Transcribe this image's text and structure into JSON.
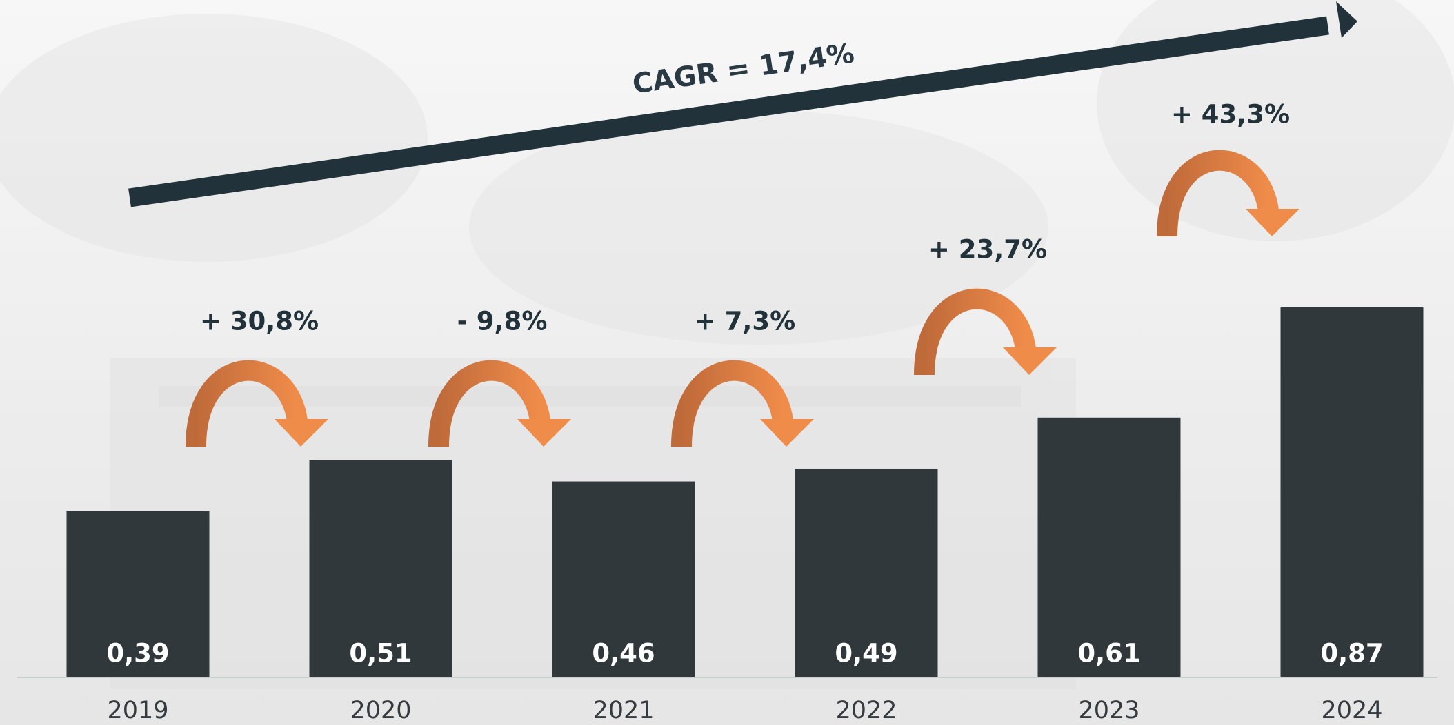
{
  "chart_data": {
    "type": "bar",
    "categories": [
      "2019",
      "2020",
      "2021",
      "2022",
      "2023",
      "2024"
    ],
    "values": [
      0.39,
      0.51,
      0.46,
      0.49,
      0.61,
      0.87
    ],
    "value_labels": [
      "0,39",
      "0,51",
      "0,46",
      "0,49",
      "0,61",
      "0,87"
    ],
    "color": "#30383b",
    "annotations": [
      "+ 30,8%",
      "- 9,8%",
      "+ 7,3%",
      "+ 23,7%",
      "+ 43,3%"
    ],
    "trend_label": "CAGR = 17,4%"
  }
}
